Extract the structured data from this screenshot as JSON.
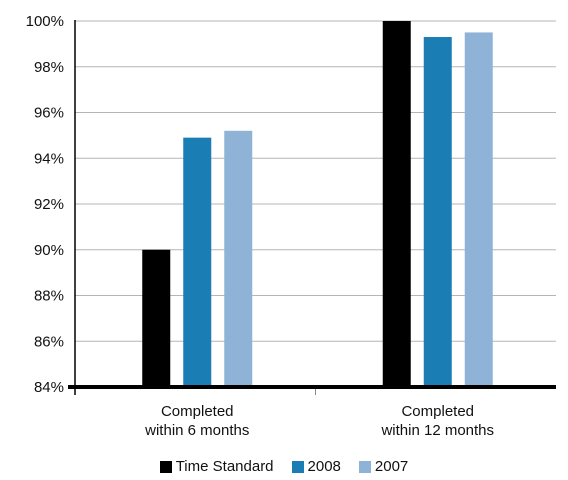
{
  "chart_data": {
    "type": "bar",
    "categories": [
      "Completed\nwithin 6 months",
      "Completed\nwithin 12 months"
    ],
    "series": [
      {
        "name": "Time Standard",
        "values": [
          90,
          100
        ],
        "color": "#000000"
      },
      {
        "name": "2008",
        "values": [
          94.9,
          99.3
        ],
        "color": "#1a7db4"
      },
      {
        "name": "2007",
        "values": [
          95.2,
          99.5
        ],
        "color": "#8fb3d7"
      }
    ],
    "ylim": [
      84,
      100
    ],
    "yticks": [
      "84%",
      "86%",
      "88%",
      "90%",
      "92%",
      "94%",
      "96%",
      "98%",
      "100%"
    ],
    "grid": true,
    "legend": "bottom"
  }
}
